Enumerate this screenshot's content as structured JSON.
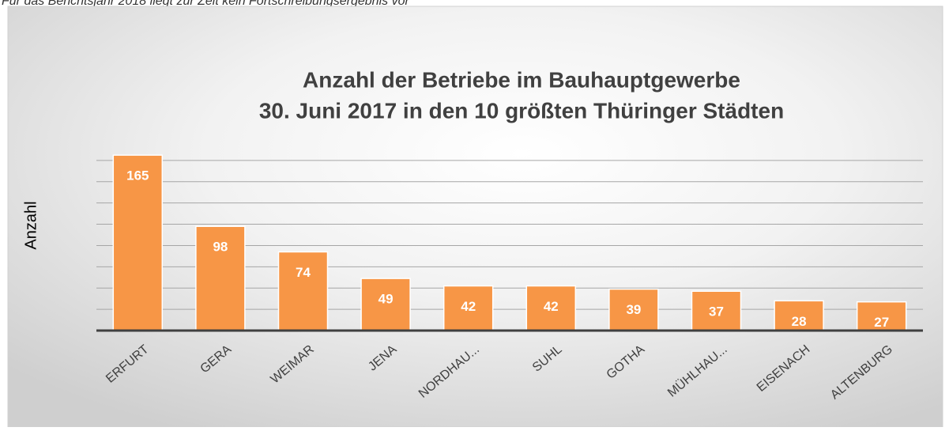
{
  "note_text": "Für das Berichtsjahr 2018 liegt zur Zeit kein Fortschreibungsergebnis vor",
  "chart_data": {
    "type": "bar",
    "title": [
      "Anzahl der Betriebe im Bauhauptgewerbe",
      "30. Juni 2017 in den 10 größten Thüringer Städten"
    ],
    "y_label": "Anzahl",
    "categories": [
      "ERFURT",
      "GERA",
      "WEIMAR",
      "JENA",
      "NORDHAU...",
      "SUHL",
      "GOTHA",
      "MÜHLHAU...",
      "EISENACH",
      "ALTENBURG"
    ],
    "values": [
      165,
      98,
      74,
      49,
      42,
      42,
      39,
      37,
      28,
      27
    ],
    "color": "#f79646",
    "ylim": [
      0,
      180
    ],
    "yticks": [
      0,
      20,
      40,
      60,
      80,
      100,
      120,
      140,
      160
    ],
    "grid": true
  }
}
